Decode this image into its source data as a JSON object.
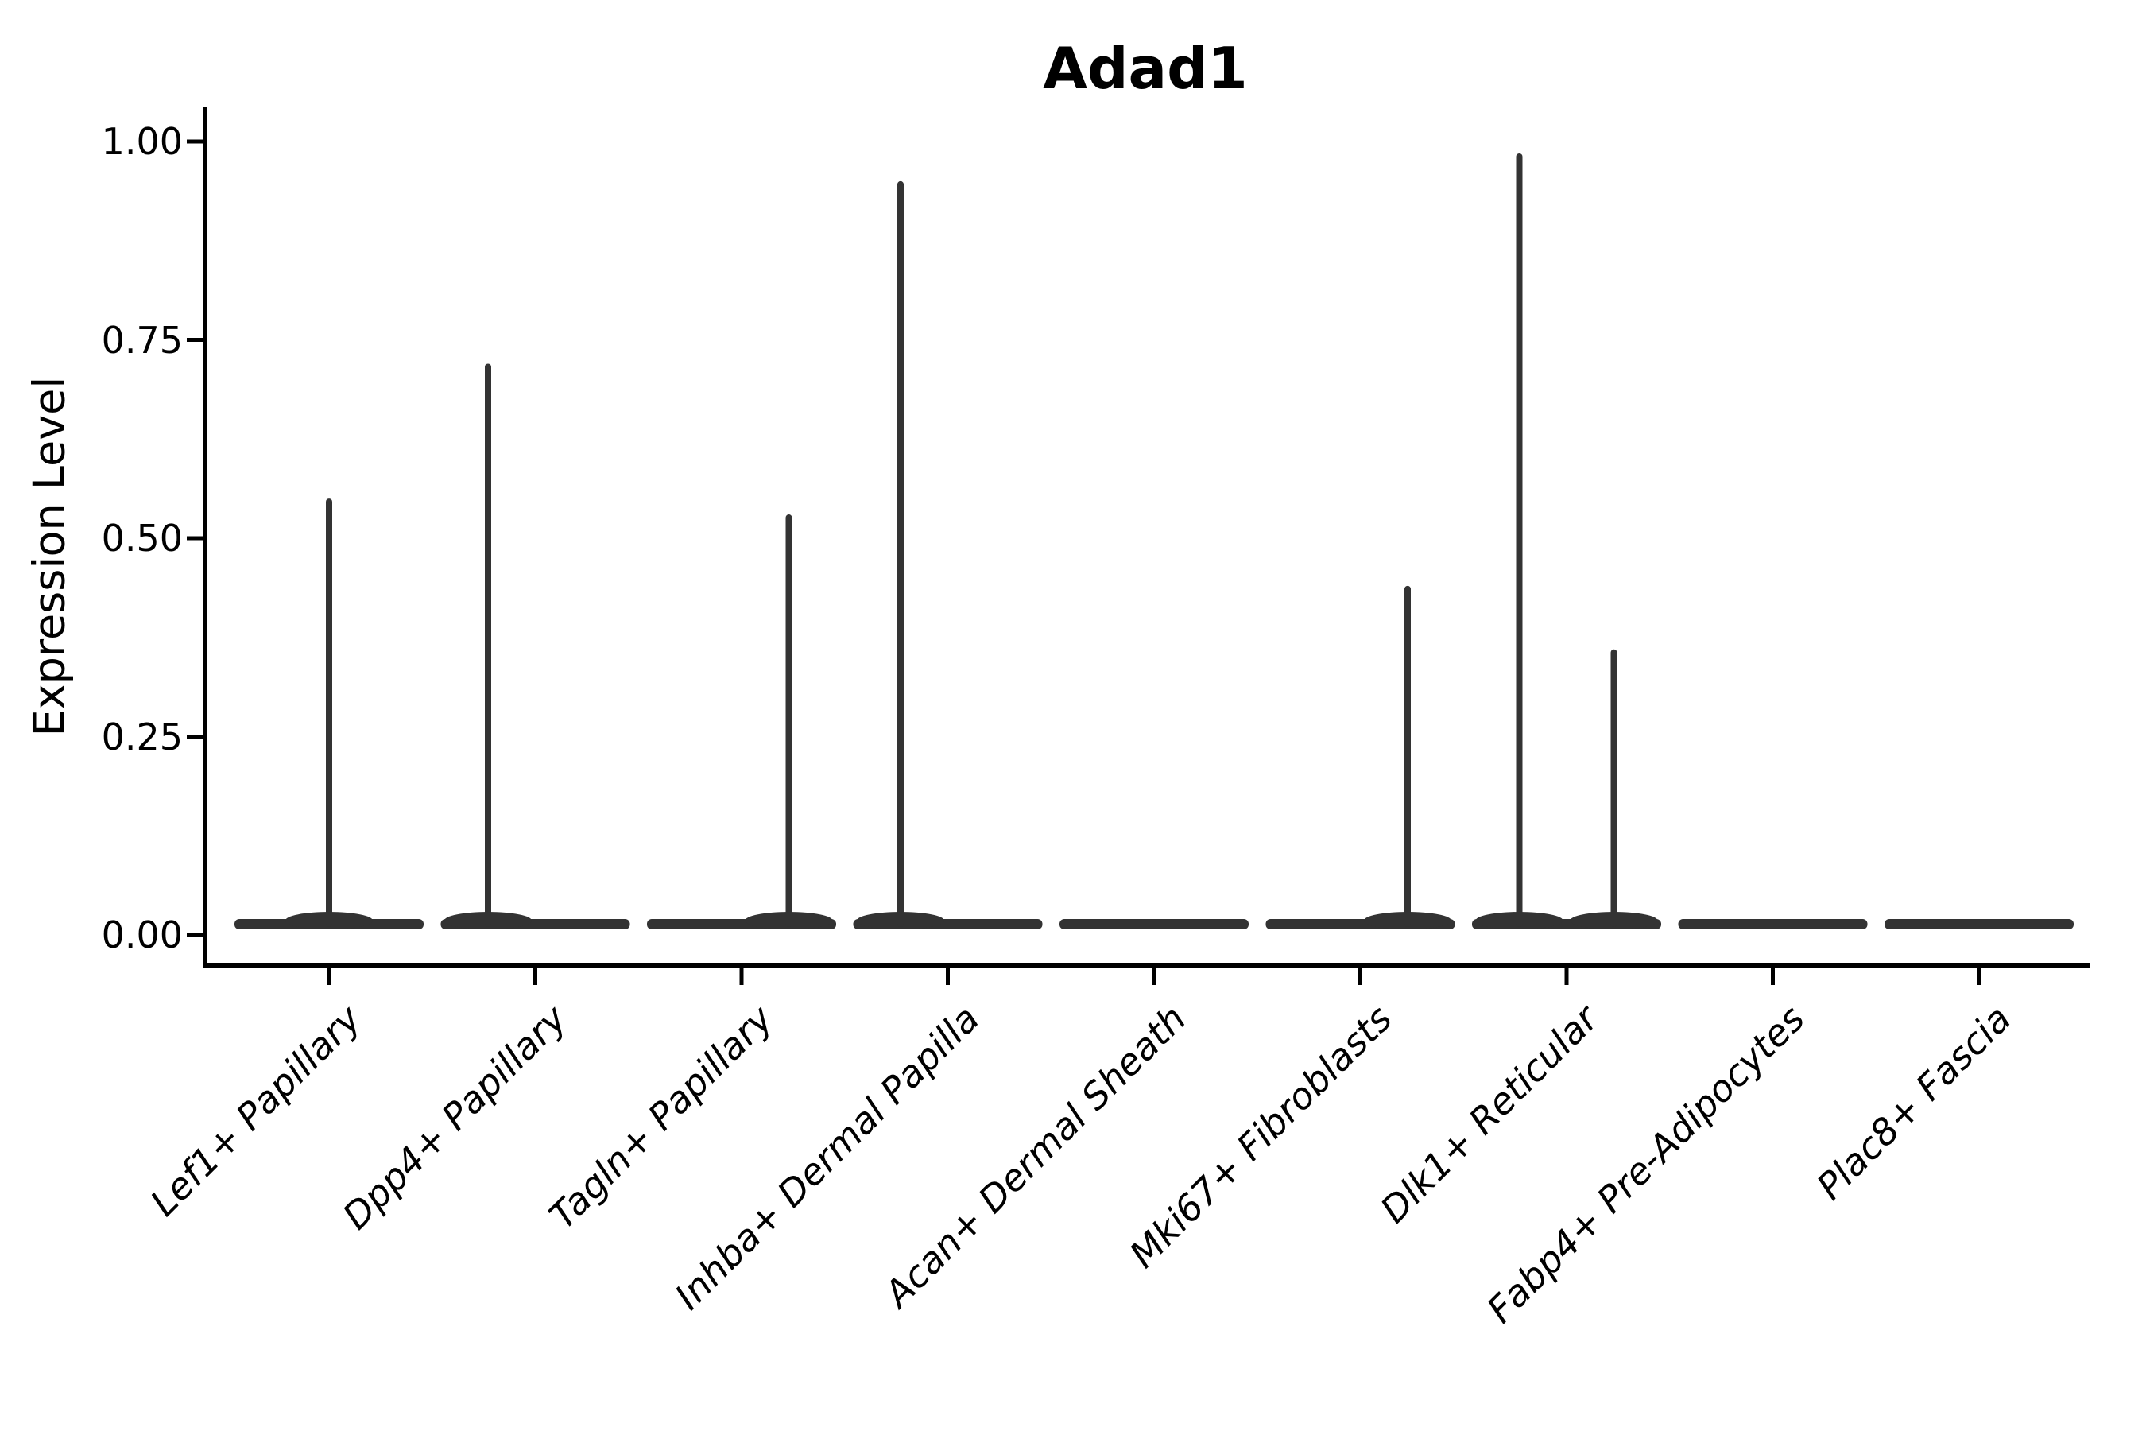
{
  "title": "Adad1",
  "y_axis": {
    "label": "Expression Level",
    "tick_labels": [
      "0.00",
      "0.25",
      "0.50",
      "0.75",
      "1.00"
    ],
    "tick_values": [
      0,
      0.25,
      0.5,
      0.75,
      1.0
    ],
    "range": [
      0,
      1
    ]
  },
  "x_axis": {
    "tick_labels": [
      "Lef1+ Papillary",
      "Dpp4+ Papillary",
      "Tagln+ Papillary",
      "Inhba+ Dermal Papilla",
      "Acan+ Dermal Sheath",
      "Mki67+ Fibroblasts",
      "Dlk1+ Reticular",
      "Fabp4+ Pre-Adipocytes",
      "Plac8+ Fascia"
    ]
  },
  "style": {
    "violin_color": "#333333",
    "axis_color": "#000000",
    "text_color": "#000000",
    "background": "#ffffff"
  },
  "chart_data": {
    "type": "violin",
    "title": "Adad1",
    "ylabel": "Expression Level",
    "ylim": [
      0,
      1
    ],
    "yticks": [
      0,
      0.25,
      0.5,
      0.75,
      1.0
    ],
    "grid": false,
    "legend_position": "none",
    "categories": [
      "Lef1+ Papillary",
      "Dpp4+ Papillary",
      "Tagln+ Papillary",
      "Inhba+ Dermal Papilla",
      "Acan+ Dermal Sheath",
      "Mki67+ Fibroblasts",
      "Dlk1+ Reticular",
      "Fabp4+ Pre-Adipocytes",
      "Plac8+ Fascia"
    ],
    "violins": [
      {
        "category": "Lef1+ Papillary",
        "base_at_zero": true,
        "spikes": [
          {
            "position": "center",
            "peak_expression": 0.55
          }
        ]
      },
      {
        "category": "Dpp4+ Papillary",
        "base_at_zero": true,
        "spikes": [
          {
            "position": "left",
            "peak_expression": 0.72
          }
        ]
      },
      {
        "category": "Tagln+ Papillary",
        "base_at_zero": true,
        "spikes": [
          {
            "position": "right",
            "peak_expression": 0.53
          }
        ]
      },
      {
        "category": "Inhba+ Dermal Papilla",
        "base_at_zero": true,
        "spikes": [
          {
            "position": "left",
            "peak_expression": 0.95
          }
        ]
      },
      {
        "category": "Acan+ Dermal Sheath",
        "base_at_zero": true,
        "spikes": []
      },
      {
        "category": "Mki67+ Fibroblasts",
        "base_at_zero": true,
        "spikes": [
          {
            "position": "right",
            "peak_expression": 0.44
          }
        ]
      },
      {
        "category": "Dlk1+ Reticular",
        "base_at_zero": true,
        "spikes": [
          {
            "position": "left",
            "peak_expression": 0.985
          },
          {
            "position": "right",
            "peak_expression": 0.36
          }
        ]
      },
      {
        "category": "Fabp4+ Pre-Adipocytes",
        "base_at_zero": true,
        "spikes": []
      },
      {
        "category": "Plac8+ Fascia",
        "base_at_zero": true,
        "spikes": []
      }
    ]
  }
}
